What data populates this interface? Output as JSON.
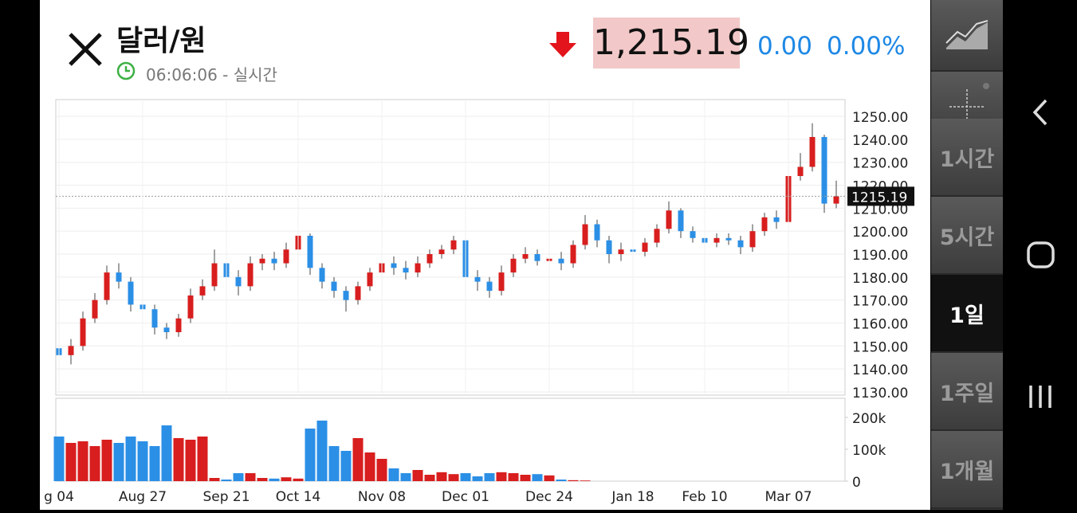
{
  "header": {
    "title": "달러/원",
    "time": "06:06:06 - 실시간",
    "price": "1,215.19",
    "change": "0.00",
    "change_pct": "0.00%"
  },
  "menu": [
    "1시간",
    "5시간",
    "1일",
    "1주일",
    "1개월"
  ],
  "selected_menu": 2,
  "chart_data": [
    {
      "type": "candlestick",
      "open": [
        1149,
        1146,
        1150,
        1162,
        1170,
        1182,
        1178,
        1168,
        1166,
        1158,
        1156,
        1162,
        1172,
        1176,
        1186,
        1180,
        1176,
        1186,
        1188,
        1186,
        1192,
        1198,
        1184,
        1178,
        1174,
        1170,
        1176,
        1182,
        1186,
        1184,
        1182,
        1186,
        1190,
        1192,
        1196,
        1180,
        1178,
        1174,
        1182,
        1188,
        1190,
        1187,
        1188,
        1186,
        1194,
        1203,
        1196,
        1190,
        1192,
        1191,
        1195,
        1201,
        1209,
        1200,
        1197,
        1195,
        1197,
        1196,
        1193,
        1200,
        1206,
        1204,
        1224,
        1228,
        1241,
        1212
      ],
      "high": [
        1152,
        1153,
        1165,
        1173,
        1185,
        1186,
        1180,
        1171,
        1168,
        1160,
        1164,
        1175,
        1179,
        1192,
        1188,
        1183,
        1189,
        1190,
        1191,
        1195,
        1200,
        1199,
        1186,
        1180,
        1176,
        1178,
        1184,
        1188,
        1189,
        1187,
        1189,
        1192,
        1194,
        1198,
        1197,
        1183,
        1180,
        1185,
        1190,
        1193,
        1192,
        1190,
        1191,
        1196,
        1207,
        1205,
        1198,
        1195,
        1194,
        1197,
        1203,
        1213,
        1210,
        1202,
        1199,
        1199,
        1199,
        1198,
        1203,
        1208,
        1209,
        1226,
        1234,
        1247,
        1242,
        1222
      ],
      "low": [
        1143,
        1142,
        1148,
        1160,
        1168,
        1175,
        1165,
        1163,
        1155,
        1153,
        1154,
        1160,
        1170,
        1174,
        1176,
        1172,
        1174,
        1183,
        1183,
        1184,
        1190,
        1181,
        1175,
        1171,
        1165,
        1168,
        1174,
        1180,
        1181,
        1179,
        1180,
        1184,
        1188,
        1190,
        1176,
        1174,
        1171,
        1172,
        1180,
        1186,
        1185,
        1184,
        1183,
        1184,
        1192,
        1193,
        1186,
        1187,
        1188,
        1189,
        1193,
        1199,
        1197,
        1195,
        1192,
        1193,
        1194,
        1190,
        1191,
        1198,
        1201,
        1202,
        1222,
        1226,
        1208,
        1210
      ],
      "close": [
        1146,
        1150,
        1162,
        1170,
        1182,
        1178,
        1168,
        1166,
        1158,
        1156,
        1162,
        1172,
        1176,
        1186,
        1180,
        1176,
        1186,
        1188,
        1186,
        1192,
        1198,
        1184,
        1178,
        1174,
        1170,
        1176,
        1182,
        1186,
        1184,
        1182,
        1186,
        1190,
        1192,
        1196,
        1180,
        1178,
        1174,
        1182,
        1188,
        1190,
        1187,
        1188,
        1186,
        1194,
        1203,
        1196,
        1190,
        1192,
        1191,
        1195,
        1201,
        1209,
        1200,
        1197,
        1195,
        1197,
        1196,
        1193,
        1200,
        1206,
        1204,
        1224,
        1228,
        1241,
        1212,
        1215.19
      ],
      "up_color": "#d81e1e",
      "down_color": "#2b8fe6",
      "ylim": [
        1128.6,
        1257.3
      ],
      "yticks": [
        {
          "value": 1130,
          "label": "1130.00"
        },
        {
          "value": 1140,
          "label": "1140.00"
        },
        {
          "value": 1150,
          "label": "1150.00"
        },
        {
          "value": 1160,
          "label": "1160.00"
        },
        {
          "value": 1170,
          "label": "1170.00"
        },
        {
          "value": 1180,
          "label": "1180.00"
        },
        {
          "value": 1190,
          "label": "1190.00"
        },
        {
          "value": 1200,
          "label": "1200.00"
        },
        {
          "value": 1210,
          "label": "1210.00"
        },
        {
          "value": 1220,
          "label": "1220.00"
        },
        {
          "value": 1230,
          "label": "1230.00"
        },
        {
          "value": 1240,
          "label": "1240.00"
        },
        {
          "value": 1250,
          "label": "1250.00"
        }
      ],
      "grid": true
    },
    {
      "type": "bar",
      "categories": [
        "g 04",
        null,
        null,
        null,
        null,
        null,
        null,
        "Aug 27",
        null,
        null,
        null,
        null,
        null,
        null,
        "Sep 21",
        null,
        null,
        null,
        null,
        null,
        "Oct 14",
        null,
        null,
        null,
        null,
        null,
        null,
        "Nov 08",
        null,
        null,
        null,
        null,
        null,
        null,
        "Dec 01",
        null,
        null,
        null,
        null,
        null,
        null,
        "Dec 24",
        null,
        null,
        null,
        null,
        null,
        null,
        "Jan 18",
        null,
        null,
        null,
        null,
        null,
        "Feb 10",
        null,
        null,
        null,
        null,
        null,
        null,
        "Mar 07",
        null,
        null,
        null,
        null
      ],
      "values": [
        140000,
        120000,
        125000,
        110000,
        130000,
        120000,
        140000,
        125000,
        110000,
        175000,
        135000,
        130000,
        140000,
        10000,
        5000,
        25000,
        25000,
        10000,
        8000,
        12000,
        8000,
        165000,
        190000,
        110000,
        95000,
        135000,
        90000,
        70000,
        40000,
        25000,
        35000,
        20000,
        28000,
        22000,
        25000,
        15000,
        25000,
        28000,
        25000,
        20000,
        22000,
        18000,
        5000,
        3000,
        2000,
        0,
        0,
        0,
        0,
        0,
        0,
        0,
        0,
        0,
        0,
        0,
        0,
        0,
        0,
        0,
        0,
        0,
        0,
        0,
        0,
        0
      ],
      "ylim": [
        0,
        260000
      ],
      "yticks": [
        0,
        {
          "value": 100000,
          "label": "100k"
        },
        {
          "value": 200000,
          "label": "200k"
        }
      ]
    }
  ]
}
